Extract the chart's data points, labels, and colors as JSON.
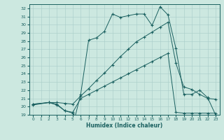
{
  "xlabel": "Humidex (Indice chaleur)",
  "bg_color": "#cce8e0",
  "line_color": "#1a6060",
  "grid_color": "#a8ccc8",
  "xlim": [
    -0.5,
    23.5
  ],
  "ylim": [
    19,
    32.5
  ],
  "xticks": [
    0,
    1,
    2,
    3,
    4,
    5,
    6,
    7,
    8,
    9,
    10,
    11,
    12,
    13,
    14,
    15,
    16,
    17,
    18,
    19,
    20,
    21,
    22,
    23
  ],
  "yticks": [
    19,
    20,
    21,
    22,
    23,
    24,
    25,
    26,
    27,
    28,
    29,
    30,
    31,
    32
  ],
  "line1_x": [
    0,
    2,
    3,
    4,
    5,
    5.3,
    6,
    7,
    8,
    9,
    10,
    11,
    12,
    13,
    14,
    15,
    16,
    17,
    18,
    19,
    20,
    21,
    22,
    23
  ],
  "line1_y": [
    20.2,
    20.5,
    20.2,
    19.5,
    19.2,
    18.8,
    21.5,
    28.1,
    28.4,
    29.2,
    31.3,
    30.9,
    31.1,
    31.3,
    31.3,
    29.9,
    32.2,
    31.2,
    27.1,
    21.5,
    21.5,
    22.0,
    21.1,
    19.0
  ],
  "line2_x": [
    0,
    2,
    3,
    4,
    5,
    6,
    7,
    8,
    9,
    10,
    11,
    12,
    13,
    14,
    15,
    16,
    17,
    18,
    19,
    20,
    21,
    22,
    23
  ],
  "line2_y": [
    20.3,
    20.5,
    20.5,
    20.4,
    20.3,
    21.3,
    22.2,
    23.2,
    24.1,
    25.1,
    26.1,
    27.0,
    27.9,
    28.5,
    29.1,
    29.7,
    30.3,
    25.3,
    22.4,
    22.1,
    21.5,
    21.0,
    20.9
  ],
  "line3_x": [
    0,
    2,
    3,
    4,
    5,
    6,
    7,
    8,
    9,
    10,
    11,
    12,
    13,
    14,
    15,
    16,
    17,
    18,
    19,
    20,
    21,
    22,
    23
  ],
  "line3_y": [
    20.3,
    20.5,
    20.3,
    19.5,
    19.3,
    21.0,
    21.5,
    22.0,
    22.5,
    23.0,
    23.5,
    24.0,
    24.5,
    25.0,
    25.5,
    26.0,
    26.5,
    19.3,
    19.2,
    19.2,
    19.2,
    19.2,
    19.2
  ]
}
